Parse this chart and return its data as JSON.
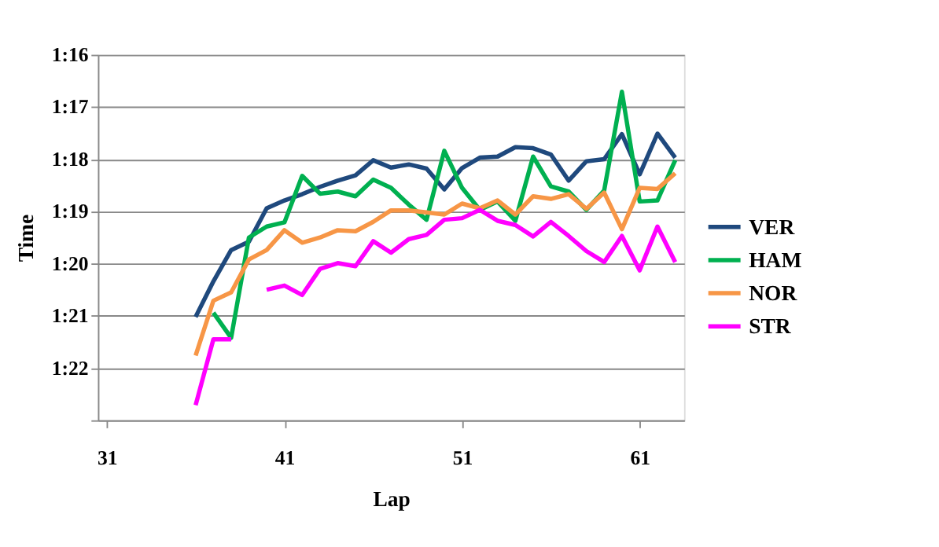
{
  "chart_data": {
    "type": "line",
    "xlabel": "Lap",
    "ylabel": "Time",
    "x": [
      36,
      37,
      38,
      39,
      40,
      41,
      42,
      43,
      44,
      45,
      46,
      47,
      48,
      49,
      50,
      51,
      52,
      53,
      54,
      55,
      56,
      57,
      58,
      59,
      60,
      61,
      62,
      63
    ],
    "xlim": [
      30.5,
      63.5
    ],
    "xticks": [
      31,
      41,
      51,
      61
    ],
    "ylim": [
      83,
      76
    ],
    "yticks": [
      {
        "value": 76,
        "label": "1:16"
      },
      {
        "value": 77,
        "label": "1:17"
      },
      {
        "value": 78,
        "label": "1:18"
      },
      {
        "value": 79,
        "label": "1:19"
      },
      {
        "value": 80,
        "label": "1:20"
      },
      {
        "value": 81,
        "label": "1:21"
      },
      {
        "value": 82,
        "label": "1:22"
      },
      {
        "value": 83,
        "label": null
      }
    ],
    "grid": "y",
    "legend": "right",
    "marker": "none",
    "line_style": "solid",
    "series": [
      {
        "name": "VER",
        "color": "#1f497d",
        "values": [
          81.02,
          80.34,
          79.74,
          79.58,
          78.94,
          78.79,
          78.67,
          78.53,
          78.41,
          78.31,
          78.02,
          78.16,
          78.1,
          78.18,
          78.58,
          78.17,
          77.97,
          77.95,
          77.77,
          77.79,
          77.91,
          78.41,
          78.04,
          78.0,
          77.52,
          78.29,
          77.51,
          77.97
        ]
      },
      {
        "name": "HAM",
        "color": "#00b050",
        "values": [
          null,
          80.94,
          81.42,
          79.5,
          79.29,
          79.21,
          78.32,
          78.66,
          78.62,
          78.71,
          78.39,
          78.55,
          78.87,
          79.16,
          77.84,
          78.55,
          78.97,
          78.81,
          79.18,
          77.95,
          78.52,
          78.62,
          78.97,
          78.6,
          76.71,
          78.81,
          78.79,
          78.02
        ]
      },
      {
        "name": "NOR",
        "color": "#f79646",
        "values": [
          81.76,
          80.71,
          80.55,
          79.92,
          79.74,
          79.36,
          79.6,
          79.5,
          79.36,
          79.38,
          79.2,
          78.98,
          78.98,
          79.02,
          79.06,
          78.85,
          78.94,
          78.79,
          79.06,
          78.71,
          78.76,
          78.67,
          78.95,
          78.64,
          79.34,
          78.55,
          78.57,
          78.27
        ]
      },
      {
        "name": "STR",
        "color": "#ff00ff",
        "values": [
          82.71,
          81.45,
          81.45,
          null,
          80.5,
          80.42,
          80.6,
          80.1,
          79.99,
          80.05,
          79.57,
          79.79,
          79.53,
          79.45,
          79.16,
          79.13,
          78.97,
          79.18,
          79.26,
          79.48,
          79.2,
          79.47,
          79.76,
          79.97,
          79.47,
          80.13,
          79.29,
          79.97
        ]
      }
    ]
  }
}
